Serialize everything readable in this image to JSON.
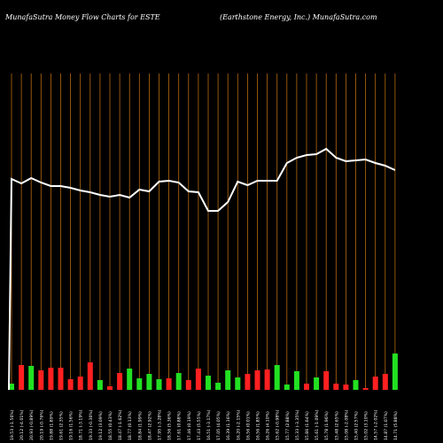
{
  "header": {
    "left": "MunafaSutra  Money Flow  Charts for ESTE",
    "right": "(Earthstone    Energy,  Inc.) MunafaSutra.com"
  },
  "chart_data": {
    "type": "bar",
    "title": "MunafaSutra  Money Flow  Charts for ESTE",
    "subtitle": "(Earthstone    Energy,  Inc.) MunafaSutra.com",
    "grid": true,
    "colors": {
      "background": "#000000",
      "grid": "#b86a10",
      "up": "#22e022",
      "down": "#ff2020",
      "line": "#ffffff"
    },
    "categories": [
      "19.53 (-1.56%)",
      "20.12 (-4.01%)",
      "20.93 (-0.89%)",
      "20.19 (-0.76%)",
      "19.88 (1.89%)",
      "19.61 (2.35%)",
      "19.16 (1.56%)",
      "18.71 (-3.19%)",
      "19.33 (-0.36%)",
      "19.12 (3.09%)",
      "18.55 (0.43%)",
      "18.47 (-1.62%)",
      "18.77 (0.13%)",
      "18.84 (1.99%)",
      "18.47 (2.92%)",
      "17.95 (-3.28%)",
      "18.56 (5.36%)",
      "17.61 (0.88%)",
      "17.46 (0.19%)",
      "17.43 (5.55%)",
      "16.51 (-3.17%)",
      "17.05 (4.05%)",
      "16.39 (1.16%)",
      "16.20 (-2.15%)",
      "16.56 (0.01%)",
      "16.56 (1.85%)",
      "16.26 (4.10%)",
      "15.62 (-0.98%)",
      "15.77 (2.88%)",
      "15.33 (-3.35%)",
      "15.86 (1.64%)",
      "15.61 (-1.09%)",
      "15.78 (1.96%)",
      "15.48 (2.65%)",
      "15.08 (-2.08%)",
      "15.40 (2.57%)",
      "15.02 (3.10%)",
      "14.57 (-2.02%)",
      "14.87 (1.07%)",
      "14.71 (5.88%)"
    ],
    "series": [
      {
        "values": [
          7,
          28,
          27,
          22,
          25,
          25,
          12,
          15,
          31,
          11,
          4,
          19,
          24,
          13,
          18,
          12,
          13,
          19,
          11,
          24,
          16,
          8,
          22,
          14,
          18,
          22,
          23,
          28,
          6,
          21,
          7,
          14,
          21,
          7,
          6,
          11,
          2,
          15,
          18,
          41
        ],
        "direction": [
          "up",
          "down",
          "up",
          "down",
          "down",
          "down",
          "down",
          "down",
          "down",
          "up",
          "down",
          "down",
          "up",
          "up",
          "up",
          "up",
          "down",
          "up",
          "down",
          "down",
          "up",
          "up",
          "up",
          "up",
          "down",
          "down",
          "down",
          "up",
          "up",
          "up",
          "down",
          "up",
          "down",
          "down",
          "down",
          "up",
          "down",
          "down",
          "down",
          "up"
        ]
      },
      {
        "type": "line",
        "values": [
          202,
          207,
          201,
          206,
          210,
          210,
          212,
          215,
          217,
          220,
          222,
          220,
          223,
          214,
          216,
          205,
          204,
          206,
          216,
          217,
          238,
          238,
          228,
          205,
          209,
          204,
          204,
          204,
          184,
          178,
          175,
          174,
          168,
          178,
          182,
          181,
          180,
          184,
          187,
          192
        ]
      }
    ]
  }
}
